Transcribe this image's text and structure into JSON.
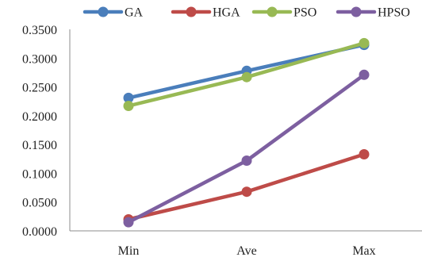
{
  "chart_data": {
    "type": "line",
    "categories": [
      "Min",
      "Ave",
      "Max"
    ],
    "ylim": [
      0,
      0.35
    ],
    "yticks": [
      "0.0000",
      "0.0500",
      "0.1000",
      "0.1500",
      "0.2000",
      "0.2500",
      "0.3000",
      "0.3500"
    ],
    "ytick_values": [
      0,
      0.05,
      0.1,
      0.15,
      0.2,
      0.25,
      0.3,
      0.35
    ],
    "grid": false,
    "legend_placement": "top",
    "series": [
      {
        "name": "GA",
        "color": "#4a7ebb",
        "values": [
          0.231,
          0.278,
          0.323
        ]
      },
      {
        "name": "HGA",
        "color": "#be4b48",
        "values": [
          0.02,
          0.068,
          0.133
        ]
      },
      {
        "name": "PSO",
        "color": "#98b954",
        "values": [
          0.217,
          0.267,
          0.326
        ]
      },
      {
        "name": "HPSO",
        "color": "#7d5fa0",
        "values": [
          0.015,
          0.122,
          0.271
        ]
      }
    ]
  }
}
